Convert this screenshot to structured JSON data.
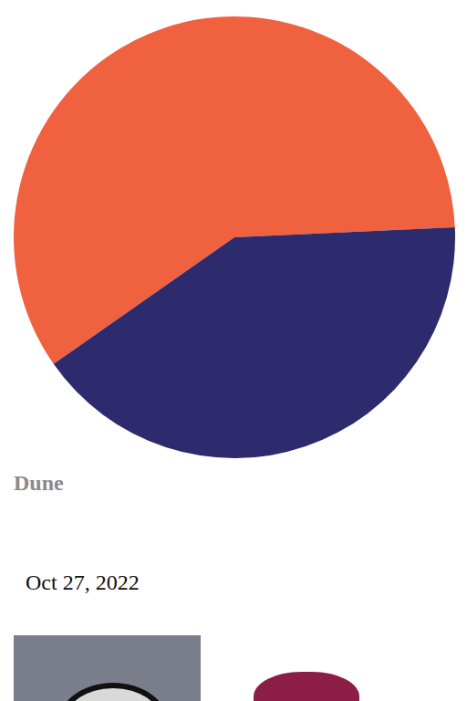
{
  "chart_data": {
    "type": "pie",
    "title": "Dune",
    "subtitle": "Oct 27, 2022",
    "values": [
      59,
      41
    ],
    "colors": [
      "#f06140",
      "#2d2a6e"
    ]
  }
}
